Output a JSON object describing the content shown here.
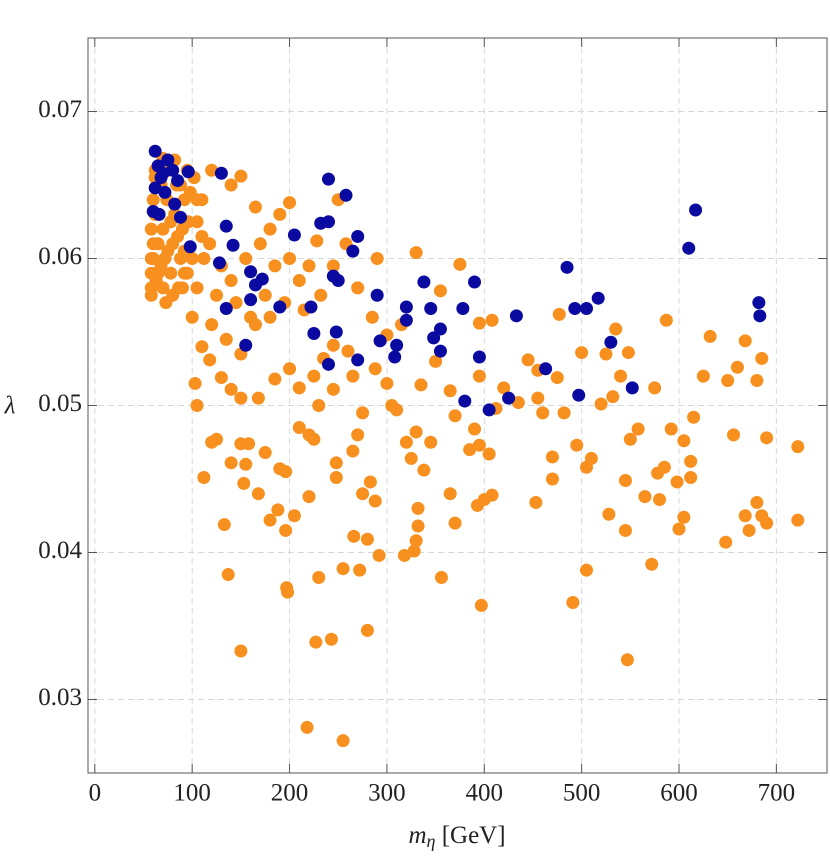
{
  "chart_data": {
    "type": "scatter",
    "xlabel": "mη [GeV]",
    "ylabel": "λ",
    "xlim": [
      -7,
      752
    ],
    "ylim": [
      0.025,
      0.075
    ],
    "xticks": [
      0,
      100,
      200,
      300,
      400,
      500,
      600,
      700
    ],
    "yticks": [
      0.03,
      0.04,
      0.05,
      0.06,
      0.07
    ],
    "grid": true,
    "series": [
      {
        "color": "#f7901e",
        "x": [
          255,
          218,
          243,
          227,
          280,
          150,
          197,
          198,
          230,
          137,
          133,
          255,
          272,
          266,
          280,
          292,
          318,
          328,
          330,
          356,
          397,
          491,
          547,
          505,
          572,
          545,
          600,
          648,
          672,
          690,
          722,
          685,
          668,
          680,
          605,
          528,
          453,
          393,
          400,
          408,
          370,
          332,
          332,
          288,
          283,
          275,
          248,
          248,
          220,
          205,
          188,
          196,
          180,
          168,
          153,
          155,
          140,
          120,
          125,
          112,
          150,
          158,
          175,
          190,
          196,
          210,
          220,
          225,
          230,
          245,
          265,
          270,
          275,
          305,
          320,
          325,
          330,
          338,
          345,
          365,
          370,
          385,
          395,
          390,
          405,
          420,
          445,
          455,
          460,
          470,
          470,
          482,
          495,
          500,
          505,
          510,
          525,
          532,
          540,
          545,
          550,
          558,
          565,
          575,
          578,
          580,
          585,
          592,
          598,
          605,
          612,
          612,
          615,
          625,
          632,
          650,
          656,
          660,
          668,
          680,
          685,
          690,
          722,
          587,
          548,
          535,
          520,
          477,
          475,
          455,
          435,
          412,
          395,
          395,
          408,
          375,
          355,
          365,
          350,
          335,
          310,
          300,
          288,
          265,
          260,
          245,
          235,
          225,
          210,
          200,
          185,
          168,
          150,
          140,
          130,
          118,
          105,
          103,
          110,
          120,
          135,
          150,
          165,
          180,
          195,
          210,
          220,
          232,
          245,
          258,
          270,
          285,
          300,
          315,
          330,
          290,
          250,
          228,
          200,
          190,
          180,
          165,
          150,
          140,
          120,
          110,
          105,
          118,
          130,
          140,
          155,
          170,
          185,
          200,
          215,
          175,
          160,
          145,
          125,
          105,
          95,
          100,
          58,
          60,
          58,
          60,
          62,
          65,
          65,
          66,
          68,
          70,
          72,
          70,
          74,
          76,
          78,
          80,
          82,
          84,
          86,
          88,
          90,
          92,
          95,
          58,
          60,
          62,
          64,
          58,
          63,
          68,
          75,
          78,
          85,
          92,
          96,
          98,
          88,
          73,
          80,
          90,
          100,
          105,
          102,
          110,
          112,
          58,
          62,
          70,
          82,
          92
        ],
        "values": [
          0.0272,
          0.0281,
          0.0341,
          0.0339,
          0.0347,
          0.0333,
          0.0376,
          0.0373,
          0.0383,
          0.0385,
          0.0419,
          0.0389,
          0.0388,
          0.0411,
          0.0409,
          0.0398,
          0.0398,
          0.0401,
          0.0408,
          0.0383,
          0.0364,
          0.0366,
          0.0327,
          0.0388,
          0.0392,
          0.0415,
          0.0416,
          0.0407,
          0.0415,
          0.042,
          0.0422,
          0.0425,
          0.0425,
          0.0434,
          0.0424,
          0.0426,
          0.0434,
          0.0432,
          0.0436,
          0.0439,
          0.042,
          0.0418,
          0.043,
          0.0435,
          0.0448,
          0.044,
          0.0451,
          0.0461,
          0.0438,
          0.0425,
          0.0429,
          0.0415,
          0.0422,
          0.044,
          0.0447,
          0.046,
          0.0461,
          0.0475,
          0.0477,
          0.0451,
          0.0474,
          0.0474,
          0.0468,
          0.0457,
          0.0455,
          0.0485,
          0.048,
          0.0477,
          0.05,
          0.0511,
          0.0469,
          0.048,
          0.0495,
          0.05,
          0.0475,
          0.0464,
          0.0482,
          0.0456,
          0.0475,
          0.044,
          0.0493,
          0.047,
          0.0473,
          0.0484,
          0.0467,
          0.0512,
          0.0531,
          0.0505,
          0.0495,
          0.0465,
          0.045,
          0.0495,
          0.0473,
          0.0536,
          0.0458,
          0.0464,
          0.0535,
          0.0506,
          0.052,
          0.0449,
          0.0477,
          0.0484,
          0.0438,
          0.0512,
          0.0454,
          0.0436,
          0.0458,
          0.0484,
          0.0448,
          0.0476,
          0.0462,
          0.0451,
          0.0492,
          0.052,
          0.0547,
          0.0517,
          0.048,
          0.0526,
          0.0544,
          0.0517,
          0.0532,
          0.0478,
          0.0472,
          0.0558,
          0.0536,
          0.0552,
          0.0501,
          0.0562,
          0.0519,
          0.0524,
          0.0502,
          0.0498,
          0.052,
          0.0556,
          0.0558,
          0.0596,
          0.0578,
          0.051,
          0.053,
          0.0514,
          0.0497,
          0.0515,
          0.0525,
          0.052,
          0.0537,
          0.0541,
          0.0532,
          0.052,
          0.0512,
          0.0525,
          0.0518,
          0.0505,
          0.0505,
          0.0511,
          0.0519,
          0.0531,
          0.05,
          0.0515,
          0.054,
          0.0555,
          0.0545,
          0.0535,
          0.0555,
          0.056,
          0.057,
          0.0585,
          0.0595,
          0.0575,
          0.0595,
          0.061,
          0.058,
          0.056,
          0.0548,
          0.0555,
          0.0604,
          0.06,
          0.064,
          0.0612,
          0.0638,
          0.063,
          0.062,
          0.0635,
          0.0656,
          0.065,
          0.066,
          0.064,
          0.0625,
          0.061,
          0.0595,
          0.0585,
          0.06,
          0.061,
          0.0595,
          0.06,
          0.0565,
          0.0575,
          0.056,
          0.057,
          0.0575,
          0.058,
          0.059,
          0.056,
          0.058,
          0.06,
          0.062,
          0.064,
          0.066,
          0.059,
          0.061,
          0.063,
          0.065,
          0.058,
          0.06,
          0.062,
          0.064,
          0.066,
          0.059,
          0.061,
          0.063,
          0.065,
          0.058,
          0.06,
          0.062,
          0.064,
          0.066,
          0.059,
          0.061,
          0.063,
          0.065,
          0.06,
          0.0585,
          0.0595,
          0.0605,
          0.0625,
          0.0615,
          0.0605,
          0.0625,
          0.0645,
          0.065,
          0.057,
          0.0575,
          0.058,
          0.06,
          0.064,
          0.0655,
          0.0615,
          0.06,
          0.0575,
          0.0655,
          0.0668,
          0.0667,
          0.059
        ]
      },
      {
        "color": "#0a0aa0",
        "x": [
          62,
          65,
          70,
          75,
          68,
          80,
          62,
          72,
          85,
          60,
          66,
          82,
          88,
          96,
          130,
          98,
          135,
          142,
          128,
          160,
          165,
          172,
          160,
          135,
          155,
          190,
          205,
          222,
          225,
          240,
          258,
          232,
          240,
          245,
          250,
          248,
          240,
          270,
          265,
          290,
          293,
          270,
          308,
          310,
          320,
          320,
          338,
          345,
          348,
          355,
          355,
          380,
          378,
          390,
          395,
          405,
          425,
          433,
          463,
          485,
          493,
          505,
          517,
          497,
          530,
          552,
          610,
          617,
          682,
          683
        ],
        "values": [
          0.0673,
          0.0663,
          0.0658,
          0.0667,
          0.0655,
          0.066,
          0.0648,
          0.0645,
          0.0653,
          0.0632,
          0.063,
          0.0637,
          0.0628,
          0.0659,
          0.0658,
          0.0608,
          0.0622,
          0.0609,
          0.0597,
          0.0591,
          0.0582,
          0.0586,
          0.0572,
          0.0566,
          0.0541,
          0.0567,
          0.0616,
          0.0567,
          0.0549,
          0.0654,
          0.0643,
          0.0624,
          0.0625,
          0.0588,
          0.0585,
          0.055,
          0.0528,
          0.0615,
          0.0605,
          0.0575,
          0.0544,
          0.0531,
          0.0533,
          0.0541,
          0.0567,
          0.0558,
          0.0584,
          0.0566,
          0.0546,
          0.0537,
          0.0552,
          0.0503,
          0.0566,
          0.0584,
          0.0533,
          0.0497,
          0.0505,
          0.0561,
          0.0525,
          0.0594,
          0.0566,
          0.0566,
          0.0573,
          0.0507,
          0.0543,
          0.0512,
          0.0607,
          0.0633,
          0.057,
          0.0561
        ]
      }
    ]
  }
}
